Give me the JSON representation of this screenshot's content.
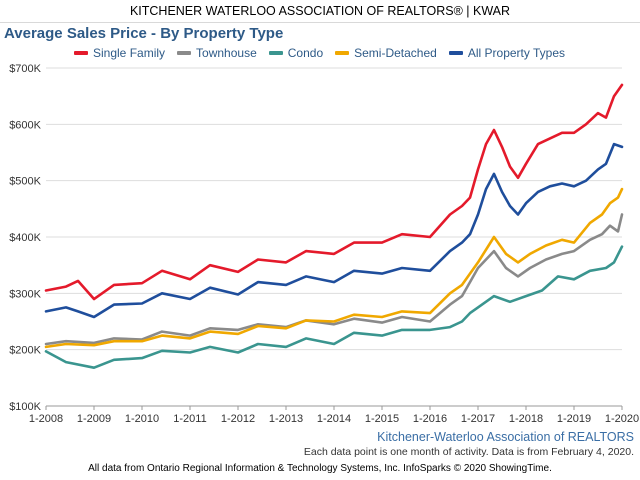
{
  "header": {
    "title": "KITCHENER WATERLOO ASSOCIATION OF REALTORS® | KWAR"
  },
  "source_label": "Kitchener-Waterloo Association of REALTORS",
  "note": "Each data point is one month of activity. Data is from February 4, 2020.",
  "footer": "All data from Ontario Regional Information & Technology Systems, Inc. InfoSparks © 2020 ShowingTime.",
  "chart_data": {
    "type": "line",
    "title": "Average Sales Price - By Property Type",
    "xlabel": "",
    "ylabel": "",
    "x_tick_labels": [
      "1-2008",
      "1-2009",
      "1-2010",
      "1-2011",
      "1-2012",
      "1-2013",
      "1-2014",
      "1-2015",
      "1-2016",
      "1-2017",
      "1-2018",
      "1-2019",
      "1-2020"
    ],
    "y_tick_labels": [
      "$100K",
      "$200K",
      "$300K",
      "$400K",
      "$500K",
      "$600K",
      "$700K"
    ],
    "ylim": [
      100000,
      700000
    ],
    "x_range": [
      "2008-01",
      "2020-01"
    ],
    "grid": "horizontal",
    "legend_position": "top",
    "series": [
      {
        "name": "Single Family",
        "color": "#e41a2b",
        "points": [
          [
            "2008-01",
            305000
          ],
          [
            "2008-06",
            312000
          ],
          [
            "2008-09",
            322000
          ],
          [
            "2009-01",
            290000
          ],
          [
            "2009-06",
            315000
          ],
          [
            "2010-01",
            318000
          ],
          [
            "2010-06",
            340000
          ],
          [
            "2011-01",
            325000
          ],
          [
            "2011-06",
            350000
          ],
          [
            "2012-01",
            338000
          ],
          [
            "2012-06",
            360000
          ],
          [
            "2013-01",
            355000
          ],
          [
            "2013-06",
            375000
          ],
          [
            "2014-01",
            370000
          ],
          [
            "2014-06",
            390000
          ],
          [
            "2015-01",
            390000
          ],
          [
            "2015-06",
            405000
          ],
          [
            "2016-01",
            400000
          ],
          [
            "2016-06",
            440000
          ],
          [
            "2016-09",
            455000
          ],
          [
            "2016-11",
            470000
          ],
          [
            "2017-01",
            520000
          ],
          [
            "2017-03",
            565000
          ],
          [
            "2017-05",
            590000
          ],
          [
            "2017-07",
            560000
          ],
          [
            "2017-09",
            525000
          ],
          [
            "2017-11",
            505000
          ],
          [
            "2018-01",
            530000
          ],
          [
            "2018-04",
            565000
          ],
          [
            "2018-07",
            575000
          ],
          [
            "2018-10",
            585000
          ],
          [
            "2019-01",
            585000
          ],
          [
            "2019-04",
            600000
          ],
          [
            "2019-07",
            620000
          ],
          [
            "2019-09",
            612000
          ],
          [
            "2019-11",
            650000
          ],
          [
            "2020-01",
            670000
          ]
        ]
      },
      {
        "name": "Townhouse",
        "color": "#8a8a8a",
        "points": [
          [
            "2008-01",
            210000
          ],
          [
            "2008-06",
            215000
          ],
          [
            "2009-01",
            212000
          ],
          [
            "2009-06",
            220000
          ],
          [
            "2010-01",
            218000
          ],
          [
            "2010-06",
            232000
          ],
          [
            "2011-01",
            225000
          ],
          [
            "2011-06",
            238000
          ],
          [
            "2012-01",
            235000
          ],
          [
            "2012-06",
            245000
          ],
          [
            "2013-01",
            240000
          ],
          [
            "2013-06",
            252000
          ],
          [
            "2014-01",
            245000
          ],
          [
            "2014-06",
            255000
          ],
          [
            "2015-01",
            248000
          ],
          [
            "2015-06",
            258000
          ],
          [
            "2016-01",
            250000
          ],
          [
            "2016-06",
            280000
          ],
          [
            "2016-09",
            295000
          ],
          [
            "2016-11",
            320000
          ],
          [
            "2017-01",
            345000
          ],
          [
            "2017-05",
            375000
          ],
          [
            "2017-08",
            345000
          ],
          [
            "2017-11",
            330000
          ],
          [
            "2018-02",
            345000
          ],
          [
            "2018-06",
            360000
          ],
          [
            "2018-10",
            370000
          ],
          [
            "2019-01",
            375000
          ],
          [
            "2019-05",
            395000
          ],
          [
            "2019-08",
            405000
          ],
          [
            "2019-10",
            420000
          ],
          [
            "2019-12",
            410000
          ],
          [
            "2020-01",
            440000
          ]
        ]
      },
      {
        "name": "Condo",
        "color": "#3a958f",
        "points": [
          [
            "2008-01",
            197000
          ],
          [
            "2008-06",
            178000
          ],
          [
            "2009-01",
            168000
          ],
          [
            "2009-06",
            182000
          ],
          [
            "2010-01",
            185000
          ],
          [
            "2010-06",
            198000
          ],
          [
            "2011-01",
            195000
          ],
          [
            "2011-06",
            205000
          ],
          [
            "2012-01",
            195000
          ],
          [
            "2012-06",
            210000
          ],
          [
            "2013-01",
            205000
          ],
          [
            "2013-06",
            220000
          ],
          [
            "2014-01",
            210000
          ],
          [
            "2014-06",
            230000
          ],
          [
            "2015-01",
            225000
          ],
          [
            "2015-06",
            235000
          ],
          [
            "2016-01",
            235000
          ],
          [
            "2016-06",
            240000
          ],
          [
            "2016-09",
            250000
          ],
          [
            "2016-11",
            265000
          ],
          [
            "2017-01",
            275000
          ],
          [
            "2017-05",
            295000
          ],
          [
            "2017-09",
            285000
          ],
          [
            "2018-01",
            295000
          ],
          [
            "2018-05",
            305000
          ],
          [
            "2018-09",
            330000
          ],
          [
            "2019-01",
            325000
          ],
          [
            "2019-05",
            340000
          ],
          [
            "2019-09",
            345000
          ],
          [
            "2019-11",
            355000
          ],
          [
            "2020-01",
            383000
          ]
        ]
      },
      {
        "name": "Semi-Detached",
        "color": "#f0a800",
        "points": [
          [
            "2008-01",
            205000
          ],
          [
            "2008-06",
            210000
          ],
          [
            "2009-01",
            208000
          ],
          [
            "2009-06",
            215000
          ],
          [
            "2010-01",
            215000
          ],
          [
            "2010-06",
            225000
          ],
          [
            "2011-01",
            220000
          ],
          [
            "2011-06",
            232000
          ],
          [
            "2012-01",
            228000
          ],
          [
            "2012-06",
            242000
          ],
          [
            "2013-01",
            238000
          ],
          [
            "2013-06",
            252000
          ],
          [
            "2014-01",
            250000
          ],
          [
            "2014-06",
            262000
          ],
          [
            "2015-01",
            258000
          ],
          [
            "2015-06",
            268000
          ],
          [
            "2016-01",
            265000
          ],
          [
            "2016-06",
            300000
          ],
          [
            "2016-09",
            315000
          ],
          [
            "2016-11",
            335000
          ],
          [
            "2017-01",
            355000
          ],
          [
            "2017-05",
            400000
          ],
          [
            "2017-08",
            370000
          ],
          [
            "2017-11",
            355000
          ],
          [
            "2018-02",
            370000
          ],
          [
            "2018-06",
            385000
          ],
          [
            "2018-10",
            395000
          ],
          [
            "2019-01",
            390000
          ],
          [
            "2019-05",
            425000
          ],
          [
            "2019-08",
            440000
          ],
          [
            "2019-10",
            460000
          ],
          [
            "2019-12",
            470000
          ],
          [
            "2020-01",
            485000
          ]
        ]
      },
      {
        "name": "All Property Types",
        "color": "#1f4e9c",
        "points": [
          [
            "2008-01",
            268000
          ],
          [
            "2008-06",
            275000
          ],
          [
            "2008-09",
            268000
          ],
          [
            "2009-01",
            258000
          ],
          [
            "2009-06",
            280000
          ],
          [
            "2010-01",
            282000
          ],
          [
            "2010-06",
            300000
          ],
          [
            "2011-01",
            290000
          ],
          [
            "2011-06",
            310000
          ],
          [
            "2012-01",
            298000
          ],
          [
            "2012-06",
            320000
          ],
          [
            "2013-01",
            315000
          ],
          [
            "2013-06",
            330000
          ],
          [
            "2014-01",
            320000
          ],
          [
            "2014-06",
            340000
          ],
          [
            "2015-01",
            335000
          ],
          [
            "2015-06",
            345000
          ],
          [
            "2016-01",
            340000
          ],
          [
            "2016-06",
            375000
          ],
          [
            "2016-09",
            390000
          ],
          [
            "2016-11",
            405000
          ],
          [
            "2017-01",
            440000
          ],
          [
            "2017-03",
            485000
          ],
          [
            "2017-05",
            512000
          ],
          [
            "2017-07",
            480000
          ],
          [
            "2017-09",
            455000
          ],
          [
            "2017-11",
            440000
          ],
          [
            "2018-01",
            460000
          ],
          [
            "2018-04",
            480000
          ],
          [
            "2018-07",
            490000
          ],
          [
            "2018-10",
            495000
          ],
          [
            "2019-01",
            490000
          ],
          [
            "2019-04",
            500000
          ],
          [
            "2019-07",
            520000
          ],
          [
            "2019-09",
            530000
          ],
          [
            "2019-11",
            565000
          ],
          [
            "2020-01",
            560000
          ]
        ]
      }
    ]
  }
}
